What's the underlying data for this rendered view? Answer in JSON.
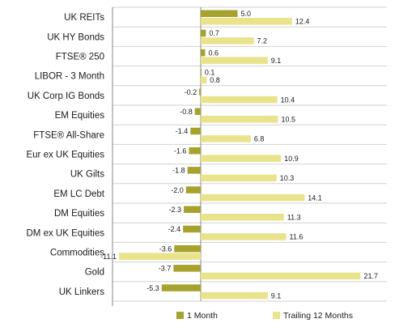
{
  "chart_data": {
    "type": "bar",
    "orientation": "horizontal",
    "categories": [
      "UK REITs",
      "UK HY Bonds",
      "FTSE® 250",
      "LIBOR - 3 Month",
      "UK Corp IG Bonds",
      "EM Equities",
      "FTSE® All-Share",
      "Eur ex UK Equities",
      "UK Gilts",
      "EM LC Debt",
      "DM Equities",
      "DM ex UK Equities",
      "Commodities",
      "Gold",
      "UK Linkers"
    ],
    "series": [
      {
        "name": "1 Month",
        "color": "#a6a22e",
        "values": [
          5.0,
          0.7,
          0.6,
          0.1,
          -0.2,
          -0.8,
          -1.4,
          -1.6,
          -1.8,
          -2.0,
          -2.3,
          -2.4,
          -3.6,
          -3.7,
          -5.3
        ],
        "labels": [
          "5.0",
          "0.7",
          "0.6",
          "0.1",
          "-0.2",
          "-0.8",
          "-1.4",
          "-1.6",
          "-1.8",
          "-2.0",
          "-2.3",
          "-2.4",
          "-3.6",
          "-3.7",
          "-5.3"
        ]
      },
      {
        "name": "Trailing 12 Months",
        "color": "#e9e38c",
        "values": [
          12.4,
          7.2,
          9.1,
          0.8,
          10.4,
          10.5,
          6.8,
          10.9,
          10.3,
          14.1,
          11.3,
          11.6,
          -11.1,
          21.7,
          9.1
        ],
        "labels": [
          "12.4",
          "7.2",
          "9.1",
          "0.8",
          "10.4",
          "10.5",
          "6.8",
          "10.9",
          "10.3",
          "14.1",
          "11.3",
          "11.6",
          "-11.1",
          "21.7",
          "9.1"
        ]
      }
    ],
    "xlim": [
      -12.5,
      22.5
    ],
    "grid": "row-separators",
    "legend_position": "bottom"
  }
}
